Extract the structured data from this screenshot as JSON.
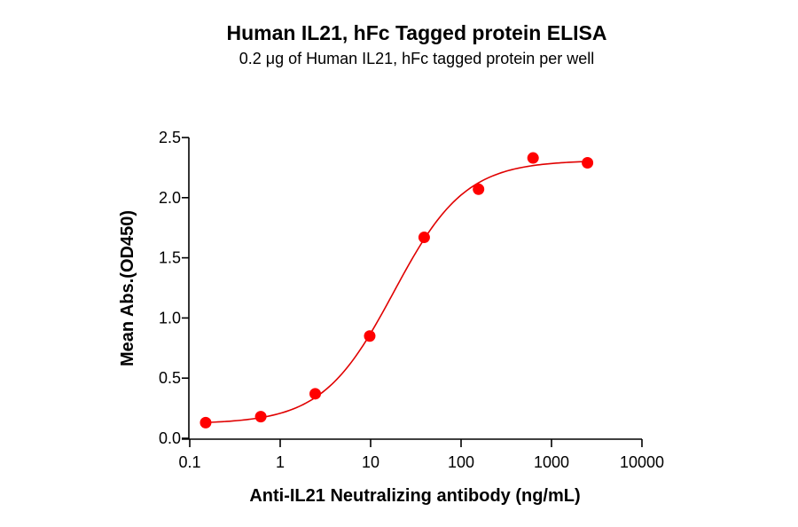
{
  "chart_data": {
    "type": "scatter",
    "title": "Human IL21, hFc Tagged protein ELISA",
    "subtitle": "0.2 μg of Human IL21, hFc tagged protein per well",
    "xlabel": "Anti-IL21 Neutralizing antibody (ng/mL)",
    "ylabel": "Mean Abs.(OD450)",
    "x_scale": "log",
    "xlim": [
      0.1,
      10000
    ],
    "ylim": [
      0.0,
      2.5
    ],
    "x_ticks": [
      "0.1",
      "1",
      "10",
      "100",
      "1000",
      "10000"
    ],
    "y_ticks": [
      "0.0",
      "0.5",
      "1.0",
      "1.5",
      "2.0",
      "2.5"
    ],
    "grid": false,
    "legend": null,
    "series": [
      {
        "name": "Anti-IL21 Neutralizing antibody",
        "color": "#ff0000",
        "x": [
          0.15,
          0.61,
          2.44,
          9.77,
          39.1,
          156,
          625,
          2500
        ],
        "y": [
          0.13,
          0.18,
          0.37,
          0.85,
          1.67,
          2.07,
          2.33,
          2.29
        ]
      }
    ],
    "fit": {
      "type": "4PL",
      "color": "#e00000",
      "bottom": 0.12,
      "top": 2.31,
      "ec50": 18,
      "hill": 1.1
    }
  }
}
